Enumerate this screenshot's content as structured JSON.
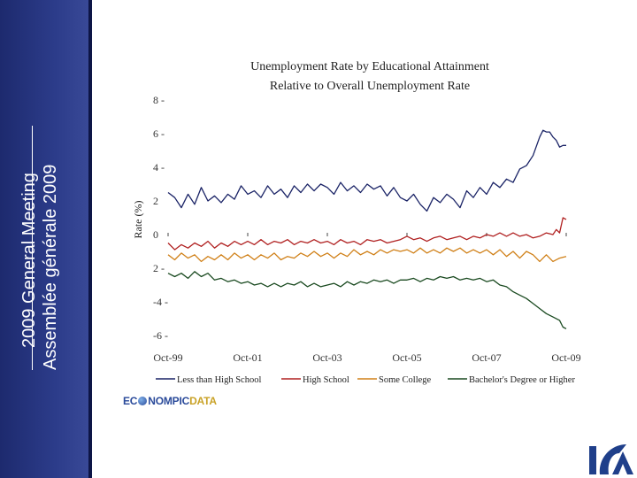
{
  "sidebar": {
    "line1": "2009 General Meeting",
    "line2": "Assemblée générale 2009"
  },
  "chart_data": {
    "type": "line",
    "title": "Unemployment Rate by Educational Attainment",
    "subtitle": "Relative to Overall Unemployment Rate",
    "ylabel": "Rate (%)",
    "xlabel": "",
    "ylim": [
      -6,
      8
    ],
    "yticks": [
      {
        "v": 8,
        "label": "8 -"
      },
      {
        "v": 6,
        "label": "6 -"
      },
      {
        "v": 4,
        "label": "4 -"
      },
      {
        "v": 2,
        "label": "2"
      },
      {
        "v": 0,
        "label": "0"
      },
      {
        "v": -2,
        "label": "2 -"
      },
      {
        "v": -4,
        "label": "-4 -"
      },
      {
        "v": -6,
        "label": "-6 -"
      }
    ],
    "xlim": [
      0,
      120
    ],
    "xticks": [
      {
        "v": 0,
        "label": "Oct-99"
      },
      {
        "v": 24,
        "label": "Oct-01"
      },
      {
        "v": 48,
        "label": "Oct-03"
      },
      {
        "v": 72,
        "label": "Oct-05"
      },
      {
        "v": 96,
        "label": "Oct-07"
      },
      {
        "v": 120,
        "label": "Oct-09"
      }
    ],
    "series": [
      {
        "name": "Less than High School",
        "color": "#1a2366",
        "points": [
          [
            0,
            2.5
          ],
          [
            2,
            2.2
          ],
          [
            4,
            1.6
          ],
          [
            6,
            2.4
          ],
          [
            8,
            1.8
          ],
          [
            10,
            2.8
          ],
          [
            12,
            2.0
          ],
          [
            14,
            2.3
          ],
          [
            16,
            1.9
          ],
          [
            18,
            2.4
          ],
          [
            20,
            2.1
          ],
          [
            22,
            2.9
          ],
          [
            24,
            2.4
          ],
          [
            26,
            2.6
          ],
          [
            28,
            2.2
          ],
          [
            30,
            2.9
          ],
          [
            32,
            2.4
          ],
          [
            34,
            2.7
          ],
          [
            36,
            2.2
          ],
          [
            38,
            2.9
          ],
          [
            40,
            2.5
          ],
          [
            42,
            3.0
          ],
          [
            44,
            2.6
          ],
          [
            46,
            3.0
          ],
          [
            48,
            2.8
          ],
          [
            50,
            2.4
          ],
          [
            52,
            3.1
          ],
          [
            54,
            2.6
          ],
          [
            56,
            2.9
          ],
          [
            58,
            2.5
          ],
          [
            60,
            3.0
          ],
          [
            62,
            2.7
          ],
          [
            64,
            2.9
          ],
          [
            66,
            2.3
          ],
          [
            68,
            2.8
          ],
          [
            70,
            2.2
          ],
          [
            72,
            2.0
          ],
          [
            74,
            2.4
          ],
          [
            76,
            1.8
          ],
          [
            78,
            1.4
          ],
          [
            80,
            2.2
          ],
          [
            82,
            1.9
          ],
          [
            84,
            2.4
          ],
          [
            86,
            2.1
          ],
          [
            88,
            1.6
          ],
          [
            90,
            2.6
          ],
          [
            92,
            2.2
          ],
          [
            94,
            2.8
          ],
          [
            96,
            2.4
          ],
          [
            98,
            3.1
          ],
          [
            100,
            2.8
          ],
          [
            102,
            3.3
          ],
          [
            104,
            3.1
          ],
          [
            106,
            3.9
          ],
          [
            108,
            4.1
          ],
          [
            110,
            4.7
          ],
          [
            112,
            5.8
          ],
          [
            113,
            6.2
          ],
          [
            114,
            6.1
          ],
          [
            115,
            6.1
          ],
          [
            116,
            5.8
          ],
          [
            117,
            5.6
          ],
          [
            118,
            5.2
          ],
          [
            119,
            5.3
          ],
          [
            120,
            5.3
          ]
        ]
      },
      {
        "name": "High School",
        "color": "#b02020",
        "points": [
          [
            0,
            -0.5
          ],
          [
            2,
            -0.9
          ],
          [
            4,
            -0.6
          ],
          [
            6,
            -0.8
          ],
          [
            8,
            -0.5
          ],
          [
            10,
            -0.7
          ],
          [
            12,
            -0.4
          ],
          [
            14,
            -0.8
          ],
          [
            16,
            -0.5
          ],
          [
            18,
            -0.7
          ],
          [
            20,
            -0.4
          ],
          [
            22,
            -0.6
          ],
          [
            24,
            -0.4
          ],
          [
            26,
            -0.6
          ],
          [
            28,
            -0.3
          ],
          [
            30,
            -0.6
          ],
          [
            32,
            -0.4
          ],
          [
            34,
            -0.5
          ],
          [
            36,
            -0.3
          ],
          [
            38,
            -0.6
          ],
          [
            40,
            -0.4
          ],
          [
            42,
            -0.5
          ],
          [
            44,
            -0.3
          ],
          [
            46,
            -0.5
          ],
          [
            48,
            -0.4
          ],
          [
            50,
            -0.6
          ],
          [
            52,
            -0.3
          ],
          [
            54,
            -0.5
          ],
          [
            56,
            -0.4
          ],
          [
            58,
            -0.6
          ],
          [
            60,
            -0.3
          ],
          [
            62,
            -0.4
          ],
          [
            64,
            -0.3
          ],
          [
            66,
            -0.5
          ],
          [
            68,
            -0.4
          ],
          [
            70,
            -0.3
          ],
          [
            72,
            -0.1
          ],
          [
            74,
            -0.3
          ],
          [
            76,
            -0.2
          ],
          [
            78,
            -0.4
          ],
          [
            80,
            -0.2
          ],
          [
            82,
            -0.1
          ],
          [
            84,
            -0.3
          ],
          [
            86,
            -0.2
          ],
          [
            88,
            -0.1
          ],
          [
            90,
            -0.3
          ],
          [
            92,
            -0.1
          ],
          [
            94,
            -0.2
          ],
          [
            96,
            0.0
          ],
          [
            98,
            -0.1
          ],
          [
            100,
            0.1
          ],
          [
            102,
            -0.1
          ],
          [
            104,
            0.1
          ],
          [
            106,
            -0.1
          ],
          [
            108,
            0.0
          ],
          [
            110,
            -0.2
          ],
          [
            112,
            -0.1
          ],
          [
            114,
            0.1
          ],
          [
            116,
            0.0
          ],
          [
            117,
            0.3
          ],
          [
            118,
            0.1
          ],
          [
            119,
            1.0
          ],
          [
            120,
            0.9
          ]
        ]
      },
      {
        "name": "Some College",
        "color": "#d08018",
        "points": [
          [
            0,
            -1.2
          ],
          [
            2,
            -1.5
          ],
          [
            4,
            -1.1
          ],
          [
            6,
            -1.4
          ],
          [
            8,
            -1.2
          ],
          [
            10,
            -1.6
          ],
          [
            12,
            -1.3
          ],
          [
            14,
            -1.5
          ],
          [
            16,
            -1.2
          ],
          [
            18,
            -1.5
          ],
          [
            20,
            -1.1
          ],
          [
            22,
            -1.4
          ],
          [
            24,
            -1.2
          ],
          [
            26,
            -1.5
          ],
          [
            28,
            -1.2
          ],
          [
            30,
            -1.4
          ],
          [
            32,
            -1.1
          ],
          [
            34,
            -1.5
          ],
          [
            36,
            -1.3
          ],
          [
            38,
            -1.4
          ],
          [
            40,
            -1.1
          ],
          [
            42,
            -1.3
          ],
          [
            44,
            -1.0
          ],
          [
            46,
            -1.3
          ],
          [
            48,
            -1.1
          ],
          [
            50,
            -1.4
          ],
          [
            52,
            -1.1
          ],
          [
            54,
            -1.3
          ],
          [
            56,
            -0.9
          ],
          [
            58,
            -1.2
          ],
          [
            60,
            -1.0
          ],
          [
            62,
            -1.2
          ],
          [
            64,
            -0.9
          ],
          [
            66,
            -1.1
          ],
          [
            68,
            -0.9
          ],
          [
            70,
            -1.0
          ],
          [
            72,
            -0.9
          ],
          [
            74,
            -1.1
          ],
          [
            76,
            -0.8
          ],
          [
            78,
            -1.1
          ],
          [
            80,
            -0.9
          ],
          [
            82,
            -1.1
          ],
          [
            84,
            -0.8
          ],
          [
            86,
            -1.0
          ],
          [
            88,
            -0.8
          ],
          [
            90,
            -1.1
          ],
          [
            92,
            -0.9
          ],
          [
            94,
            -1.1
          ],
          [
            96,
            -0.9
          ],
          [
            98,
            -1.2
          ],
          [
            100,
            -0.9
          ],
          [
            102,
            -1.3
          ],
          [
            104,
            -1.0
          ],
          [
            106,
            -1.4
          ],
          [
            108,
            -1.0
          ],
          [
            110,
            -1.2
          ],
          [
            112,
            -1.6
          ],
          [
            114,
            -1.2
          ],
          [
            116,
            -1.6
          ],
          [
            118,
            -1.4
          ],
          [
            120,
            -1.3
          ]
        ]
      },
      {
        "name": "Bachelor's Degree or Higher",
        "color": "#1a4a20",
        "points": [
          [
            0,
            -2.3
          ],
          [
            2,
            -2.5
          ],
          [
            4,
            -2.3
          ],
          [
            6,
            -2.6
          ],
          [
            8,
            -2.2
          ],
          [
            10,
            -2.5
          ],
          [
            12,
            -2.3
          ],
          [
            14,
            -2.7
          ],
          [
            16,
            -2.6
          ],
          [
            18,
            -2.8
          ],
          [
            20,
            -2.7
          ],
          [
            22,
            -2.9
          ],
          [
            24,
            -2.8
          ],
          [
            26,
            -3.0
          ],
          [
            28,
            -2.9
          ],
          [
            30,
            -3.1
          ],
          [
            32,
            -2.9
          ],
          [
            34,
            -3.1
          ],
          [
            36,
            -2.9
          ],
          [
            38,
            -3.0
          ],
          [
            40,
            -2.8
          ],
          [
            42,
            -3.1
          ],
          [
            44,
            -2.9
          ],
          [
            46,
            -3.1
          ],
          [
            48,
            -3.0
          ],
          [
            50,
            -2.9
          ],
          [
            52,
            -3.1
          ],
          [
            54,
            -2.8
          ],
          [
            56,
            -3.0
          ],
          [
            58,
            -2.8
          ],
          [
            60,
            -2.9
          ],
          [
            62,
            -2.7
          ],
          [
            64,
            -2.8
          ],
          [
            66,
            -2.7
          ],
          [
            68,
            -2.9
          ],
          [
            70,
            -2.7
          ],
          [
            72,
            -2.7
          ],
          [
            74,
            -2.6
          ],
          [
            76,
            -2.8
          ],
          [
            78,
            -2.6
          ],
          [
            80,
            -2.7
          ],
          [
            82,
            -2.5
          ],
          [
            84,
            -2.6
          ],
          [
            86,
            -2.5
          ],
          [
            88,
            -2.7
          ],
          [
            90,
            -2.6
          ],
          [
            92,
            -2.7
          ],
          [
            94,
            -2.6
          ],
          [
            96,
            -2.8
          ],
          [
            98,
            -2.7
          ],
          [
            100,
            -3.0
          ],
          [
            102,
            -3.1
          ],
          [
            104,
            -3.4
          ],
          [
            106,
            -3.6
          ],
          [
            108,
            -3.8
          ],
          [
            110,
            -4.1
          ],
          [
            112,
            -4.4
          ],
          [
            114,
            -4.7
          ],
          [
            116,
            -4.9
          ],
          [
            118,
            -5.1
          ],
          [
            119,
            -5.5
          ],
          [
            120,
            -5.6
          ]
        ]
      }
    ],
    "legend_position": "bottom"
  },
  "branding": {
    "logo_part1": "EC",
    "logo_part2": "NOMPIC",
    "logo_part3": "DATA"
  },
  "colors": {
    "sidebar": "#2c3c8a",
    "accent": "#1f3f8a"
  }
}
